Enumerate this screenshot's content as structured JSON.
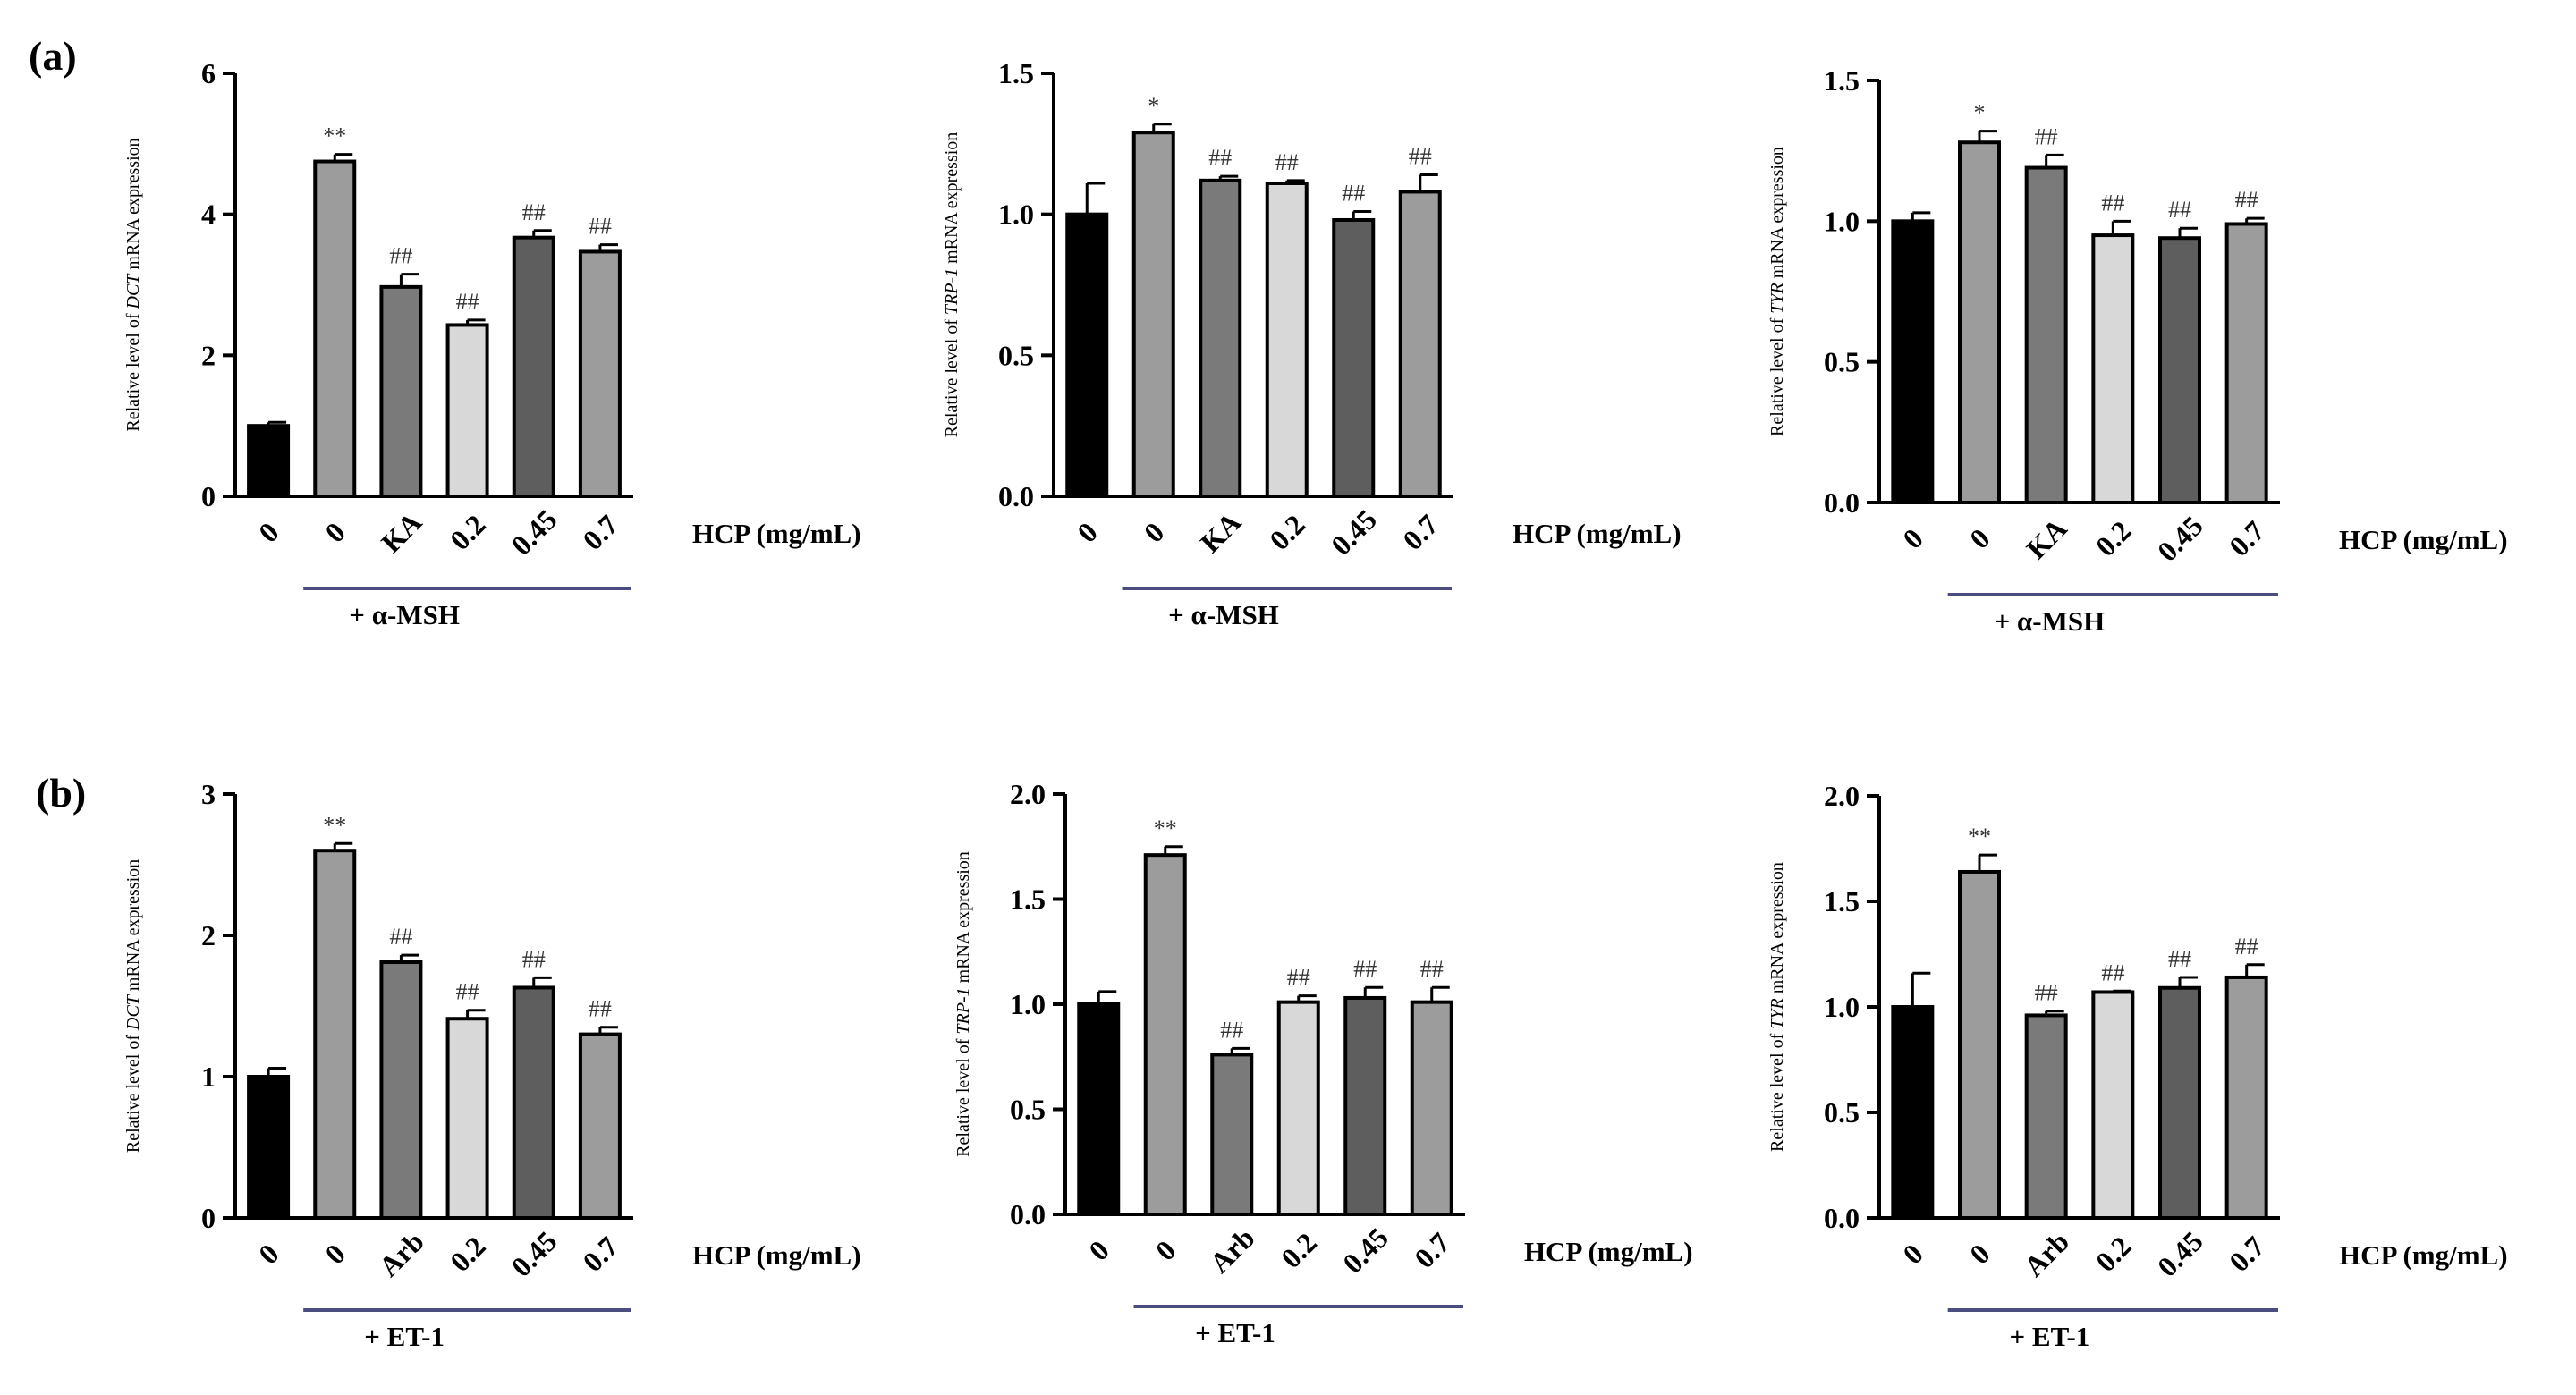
{
  "panel_labels": [
    "(a)",
    "(b)"
  ],
  "chart_data": [
    {
      "type": "bar",
      "panel": "(a)",
      "ylabel": {
        "prefix": "Relative level of ",
        "gene": "DCT",
        "suffix": " mRNA expression"
      },
      "categories": [
        "0",
        "0",
        "KA",
        "0.2",
        "0.45",
        "0.7"
      ],
      "values": [
        1.0,
        4.75,
        2.97,
        2.43,
        3.67,
        3.47
      ],
      "errors": [
        0.05,
        0.1,
        0.18,
        0.07,
        0.1,
        0.1
      ],
      "significance": [
        "",
        "**",
        "##",
        "##",
        "##",
        "##"
      ],
      "colors": [
        "#000000",
        "#9c9c9c",
        "#7a7a7a",
        "#d8d8d8",
        "#5e5e5e",
        "#9c9c9c"
      ],
      "ylim": [
        0,
        6
      ],
      "yticks": [
        "0",
        "2",
        "4",
        "6"
      ],
      "unit_label": "HCP (mg/mL)",
      "treatment": "+ α-MSH"
    },
    {
      "type": "bar",
      "panel": "(a)",
      "ylabel": {
        "prefix": "Relative level of ",
        "gene": "TRP-1",
        "suffix": " mRNA expression"
      },
      "categories": [
        "0",
        "0",
        "KA",
        "0.2",
        "0.45",
        "0.7"
      ],
      "values": [
        1.0,
        1.29,
        1.12,
        1.11,
        0.98,
        1.08
      ],
      "errors": [
        0.11,
        0.03,
        0.015,
        0.01,
        0.03,
        0.06
      ],
      "significance": [
        "",
        "*",
        "##",
        "##",
        "##",
        "##"
      ],
      "colors": [
        "#000000",
        "#9c9c9c",
        "#7a7a7a",
        "#d8d8d8",
        "#5e5e5e",
        "#9c9c9c"
      ],
      "ylim": [
        0,
        1.5
      ],
      "yticks": [
        "0.0",
        "0.5",
        "1.0",
        "1.5"
      ],
      "unit_label": "HCP (mg/mL)",
      "treatment": "+ α-MSH"
    },
    {
      "type": "bar",
      "panel": "(a)",
      "ylabel": {
        "prefix": "Relative level of ",
        "gene": "TYR",
        "suffix": " mRNA expression"
      },
      "categories": [
        "0",
        "0",
        "KA",
        "0.2",
        "0.45",
        "0.7"
      ],
      "values": [
        1.0,
        1.28,
        1.19,
        0.95,
        0.94,
        0.99
      ],
      "errors": [
        0.03,
        0.04,
        0.045,
        0.05,
        0.035,
        0.02
      ],
      "significance": [
        "",
        "*",
        "##",
        "##",
        "##",
        "##"
      ],
      "colors": [
        "#000000",
        "#9c9c9c",
        "#7a7a7a",
        "#d8d8d8",
        "#5e5e5e",
        "#9c9c9c"
      ],
      "ylim": [
        0,
        1.5
      ],
      "yticks": [
        "0.0",
        "0.5",
        "1.0",
        "1.5"
      ],
      "unit_label": "HCP (mg/mL)",
      "treatment": "+ α-MSH"
    },
    {
      "type": "bar",
      "panel": "(b)",
      "ylabel": {
        "prefix": "Relative level of ",
        "gene": "DCT",
        "suffix": " mRNA expression"
      },
      "categories": [
        "0",
        "0",
        "Arb",
        "0.2",
        "0.45",
        "0.7"
      ],
      "values": [
        1.0,
        2.6,
        1.81,
        1.41,
        1.63,
        1.3
      ],
      "errors": [
        0.06,
        0.05,
        0.05,
        0.06,
        0.07,
        0.05
      ],
      "significance": [
        "",
        "**",
        "##",
        "##",
        "##",
        "##"
      ],
      "colors": [
        "#000000",
        "#9c9c9c",
        "#7a7a7a",
        "#d8d8d8",
        "#5e5e5e",
        "#9c9c9c"
      ],
      "ylim": [
        0,
        3
      ],
      "yticks": [
        "0",
        "1",
        "2",
        "3"
      ],
      "unit_label": "HCP (mg/mL)",
      "treatment": "+ ET-1"
    },
    {
      "type": "bar",
      "panel": "(b)",
      "ylabel": {
        "prefix": "Relative level of ",
        "gene": "TRP-1",
        "suffix": " mRNA expression"
      },
      "categories": [
        "0",
        "0",
        "Arb",
        "0.2",
        "0.45",
        "0.7"
      ],
      "values": [
        1.0,
        1.71,
        0.76,
        1.01,
        1.03,
        1.01
      ],
      "errors": [
        0.06,
        0.04,
        0.03,
        0.03,
        0.05,
        0.07
      ],
      "significance": [
        "",
        "**",
        "##",
        "##",
        "##",
        "##"
      ],
      "colors": [
        "#000000",
        "#9c9c9c",
        "#7a7a7a",
        "#d8d8d8",
        "#5e5e5e",
        "#9c9c9c"
      ],
      "ylim": [
        0,
        2.0
      ],
      "yticks": [
        "0.0",
        "0.5",
        "1.0",
        "1.5",
        "2.0"
      ],
      "unit_label": "HCP (mg/mL)",
      "treatment": "+ ET-1"
    },
    {
      "type": "bar",
      "panel": "(b)",
      "ylabel": {
        "prefix": "Relative level of ",
        "gene": "TYR",
        "suffix": " mRNA expression"
      },
      "categories": [
        "0",
        "0",
        "Arb",
        "0.2",
        "0.45",
        "0.7"
      ],
      "values": [
        1.0,
        1.64,
        0.96,
        1.07,
        1.09,
        1.14
      ],
      "errors": [
        0.16,
        0.08,
        0.02,
        0.005,
        0.05,
        0.06
      ],
      "significance": [
        "",
        "**",
        "##",
        "##",
        "##",
        "##"
      ],
      "colors": [
        "#000000",
        "#9c9c9c",
        "#7a7a7a",
        "#d8d8d8",
        "#5e5e5e",
        "#9c9c9c"
      ],
      "ylim": [
        0,
        2.0
      ],
      "yticks": [
        "0.0",
        "0.5",
        "1.0",
        "1.5",
        "2.0"
      ],
      "unit_label": "HCP (mg/mL)",
      "treatment": "+ ET-1"
    }
  ]
}
